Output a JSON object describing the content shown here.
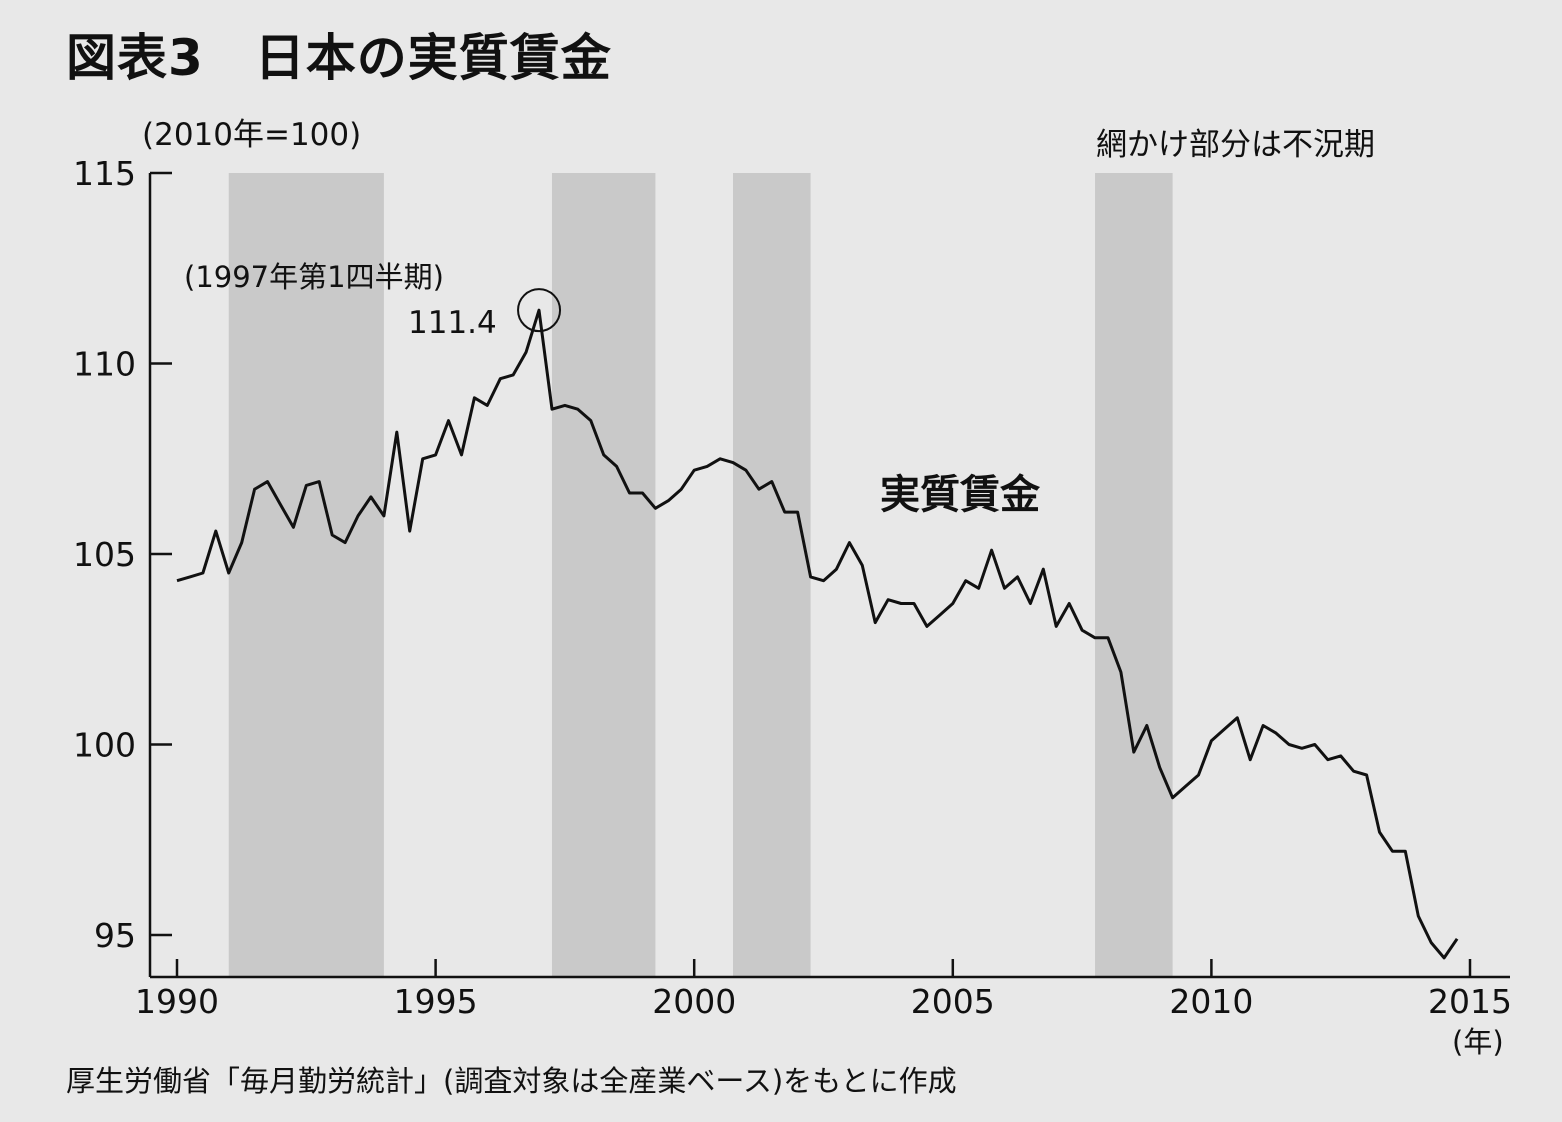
{
  "chart_data": {
    "type": "line",
    "title": "図表3　日本の実質賃金",
    "unit_label": "(2010年=100)",
    "shading_note": "網かけ部分は不況期",
    "series_label": "実質賃金",
    "x_unit": "(年)",
    "source": "厚生労働省「毎月勤労統計」(調査対象は全産業ベース)をもとに作成",
    "xlim": [
      1990,
      2015
    ],
    "ylim": [
      94,
      115
    ],
    "x_ticks": [
      "1990",
      "1995",
      "2000",
      "2005",
      "2010",
      "2015"
    ],
    "y_ticks": [
      "95",
      "100",
      "105",
      "110",
      "115"
    ],
    "recessions": [
      [
        1991.0,
        1994.0
      ],
      [
        1997.25,
        1999.25
      ],
      [
        2000.75,
        2002.25
      ],
      [
        2007.75,
        2009.25
      ]
    ],
    "peak": {
      "label": "(1997年第1四半期)",
      "value_label": "111.4",
      "x": 1997.0,
      "y": 111.4
    },
    "series": [
      {
        "name": "実質賃金",
        "x": [
          1990.0,
          1990.25,
          1990.5,
          1990.75,
          1991.0,
          1991.25,
          1991.5,
          1991.75,
          1992.0,
          1992.25,
          1992.5,
          1992.75,
          1993.0,
          1993.25,
          1993.5,
          1993.75,
          1994.0,
          1994.25,
          1994.5,
          1994.75,
          1995.0,
          1995.25,
          1995.5,
          1995.75,
          1996.0,
          1996.25,
          1996.5,
          1996.75,
          1997.0,
          1997.25,
          1997.5,
          1997.75,
          1998.0,
          1998.25,
          1998.5,
          1998.75,
          1999.0,
          1999.25,
          1999.5,
          1999.75,
          2000.0,
          2000.25,
          2000.5,
          2000.75,
          2001.0,
          2001.25,
          2001.5,
          2001.75,
          2002.0,
          2002.25,
          2002.5,
          2002.75,
          2003.0,
          2003.25,
          2003.5,
          2003.75,
          2004.0,
          2004.25,
          2004.5,
          2004.75,
          2005.0,
          2005.25,
          2005.5,
          2005.75,
          2006.0,
          2006.25,
          2006.5,
          2006.75,
          2007.0,
          2007.25,
          2007.5,
          2007.75,
          2008.0,
          2008.25,
          2008.5,
          2008.75,
          2009.0,
          2009.25,
          2009.5,
          2009.75,
          2010.0,
          2010.25,
          2010.5,
          2010.75,
          2011.0,
          2011.25,
          2011.5,
          2011.75,
          2012.0,
          2012.25,
          2012.5,
          2012.75,
          2013.0,
          2013.25,
          2013.5,
          2013.75,
          2014.0,
          2014.25,
          2014.5,
          2014.75
        ],
        "values": [
          104.3,
          104.4,
          104.5,
          105.6,
          104.5,
          105.3,
          106.7,
          106.9,
          106.3,
          105.7,
          106.8,
          106.9,
          105.5,
          105.3,
          106.0,
          106.5,
          106.0,
          108.2,
          105.6,
          107.5,
          107.6,
          108.5,
          107.6,
          109.1,
          108.9,
          109.6,
          109.7,
          110.3,
          111.4,
          108.8,
          108.9,
          108.8,
          108.5,
          107.6,
          107.3,
          106.6,
          106.6,
          106.2,
          106.4,
          106.7,
          107.2,
          107.3,
          107.5,
          107.4,
          107.2,
          106.7,
          106.9,
          106.1,
          106.1,
          104.4,
          104.3,
          104.6,
          105.3,
          104.7,
          103.2,
          103.8,
          103.7,
          103.7,
          103.1,
          103.4,
          103.7,
          104.3,
          104.1,
          105.1,
          104.1,
          104.4,
          103.7,
          104.6,
          103.1,
          103.7,
          103.0,
          102.8,
          102.8,
          101.9,
          99.8,
          100.5,
          99.4,
          98.6,
          98.9,
          99.2,
          100.1,
          100.4,
          100.7,
          99.6,
          100.5,
          100.3,
          100.0,
          99.9,
          100.0,
          99.6,
          99.7,
          99.3,
          99.2,
          97.7,
          97.2,
          97.2,
          95.5,
          94.8,
          94.4,
          94.9
        ]
      }
    ]
  }
}
